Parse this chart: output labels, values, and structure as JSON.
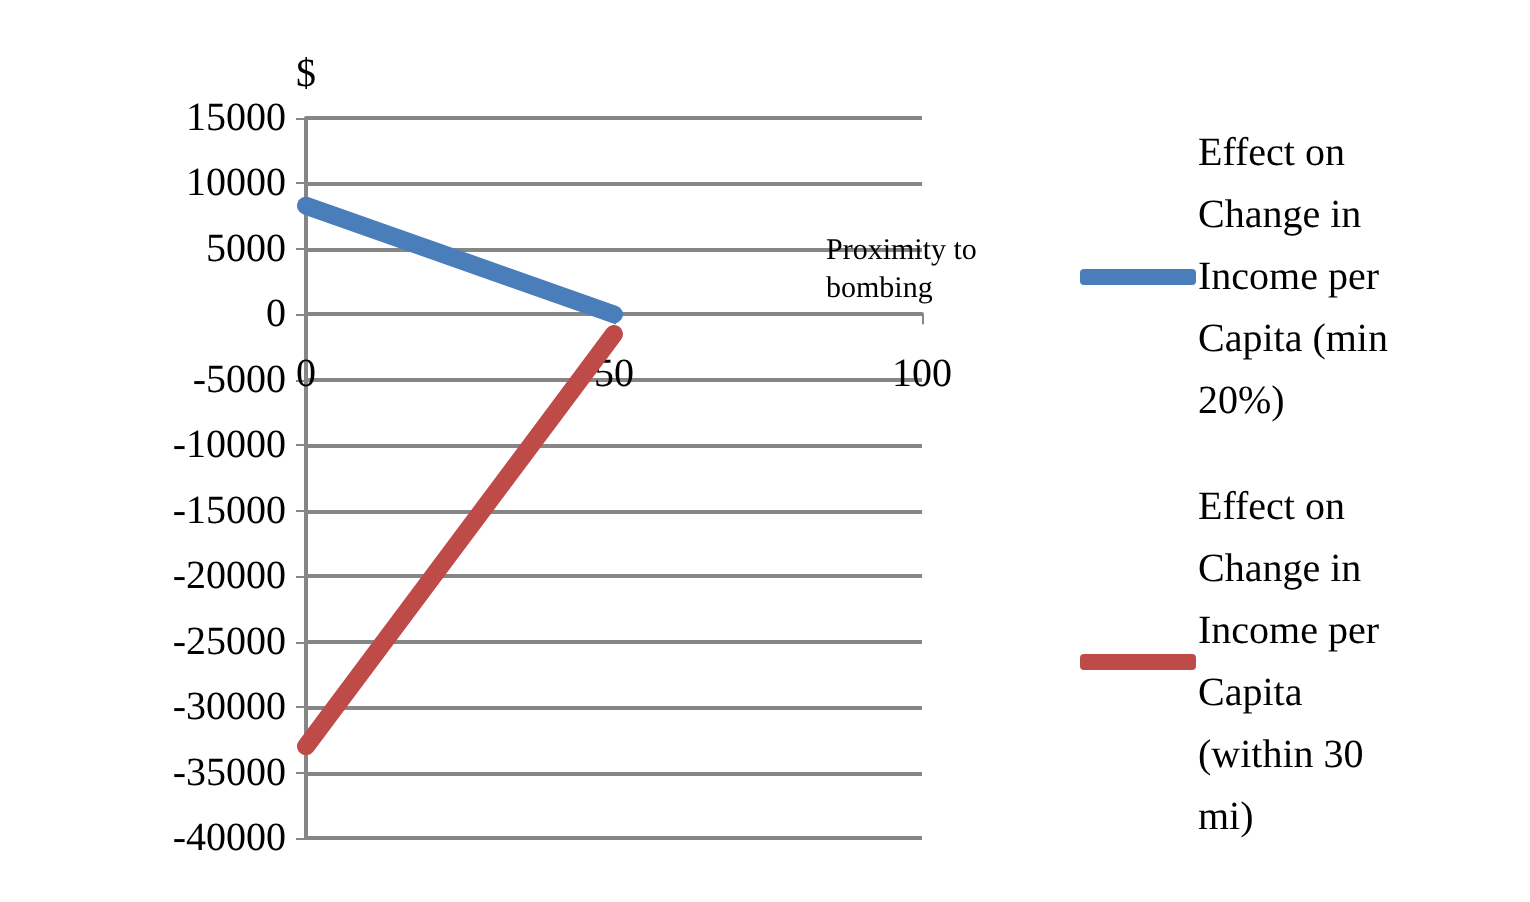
{
  "chart_data": {
    "type": "line",
    "xlabel": "Proximity to bombing",
    "ylabel": "$",
    "xlim": [
      0,
      100
    ],
    "xticks": [
      0,
      50,
      100
    ],
    "ylim": [
      -40000,
      15000
    ],
    "yticks": [
      -40000,
      -35000,
      -30000,
      -25000,
      -20000,
      -15000,
      -10000,
      -5000,
      0,
      5000,
      10000,
      15000
    ],
    "x": [
      0,
      50
    ],
    "series": [
      {
        "name": "Effect on Change in Income per Capita (min 20%)",
        "color": "#4a7ebb",
        "values": [
          8300,
          0
        ]
      },
      {
        "name": "Effect on Change in Income per Capita (within 30 mi)",
        "color": "#be4b48",
        "values": [
          -33000,
          -1500
        ]
      }
    ],
    "grid": "y",
    "legend": "right",
    "line_style": "solid"
  }
}
